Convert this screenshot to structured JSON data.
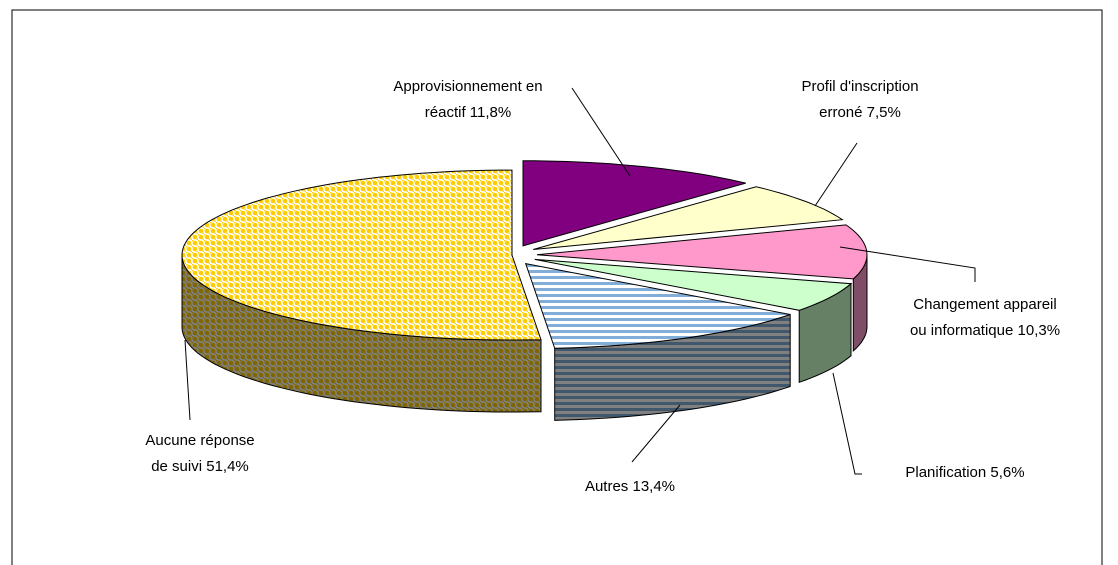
{
  "chart_data": {
    "type": "pie",
    "categories": [
      "Approvisionnement en réactif",
      "Profil d'inscription erroné",
      "Changement appareil ou informatique",
      "Planification",
      "Autres",
      "Aucune réponse de suivi"
    ],
    "values": [
      11.8,
      7.5,
      10.3,
      5.6,
      13.4,
      51.4
    ],
    "value_labels": [
      "11,8%",
      "7,5%",
      "10,3%",
      "5,6%",
      "13,4%",
      "51,4%"
    ],
    "colors": [
      "#800080",
      "#ffffcc",
      "#ff99cc",
      "#ccffcc",
      "#99ccff",
      "#ffcc00"
    ],
    "patterns": [
      "solid",
      "solid",
      "solid",
      "solid",
      "stripes",
      "dots"
    ]
  }
}
